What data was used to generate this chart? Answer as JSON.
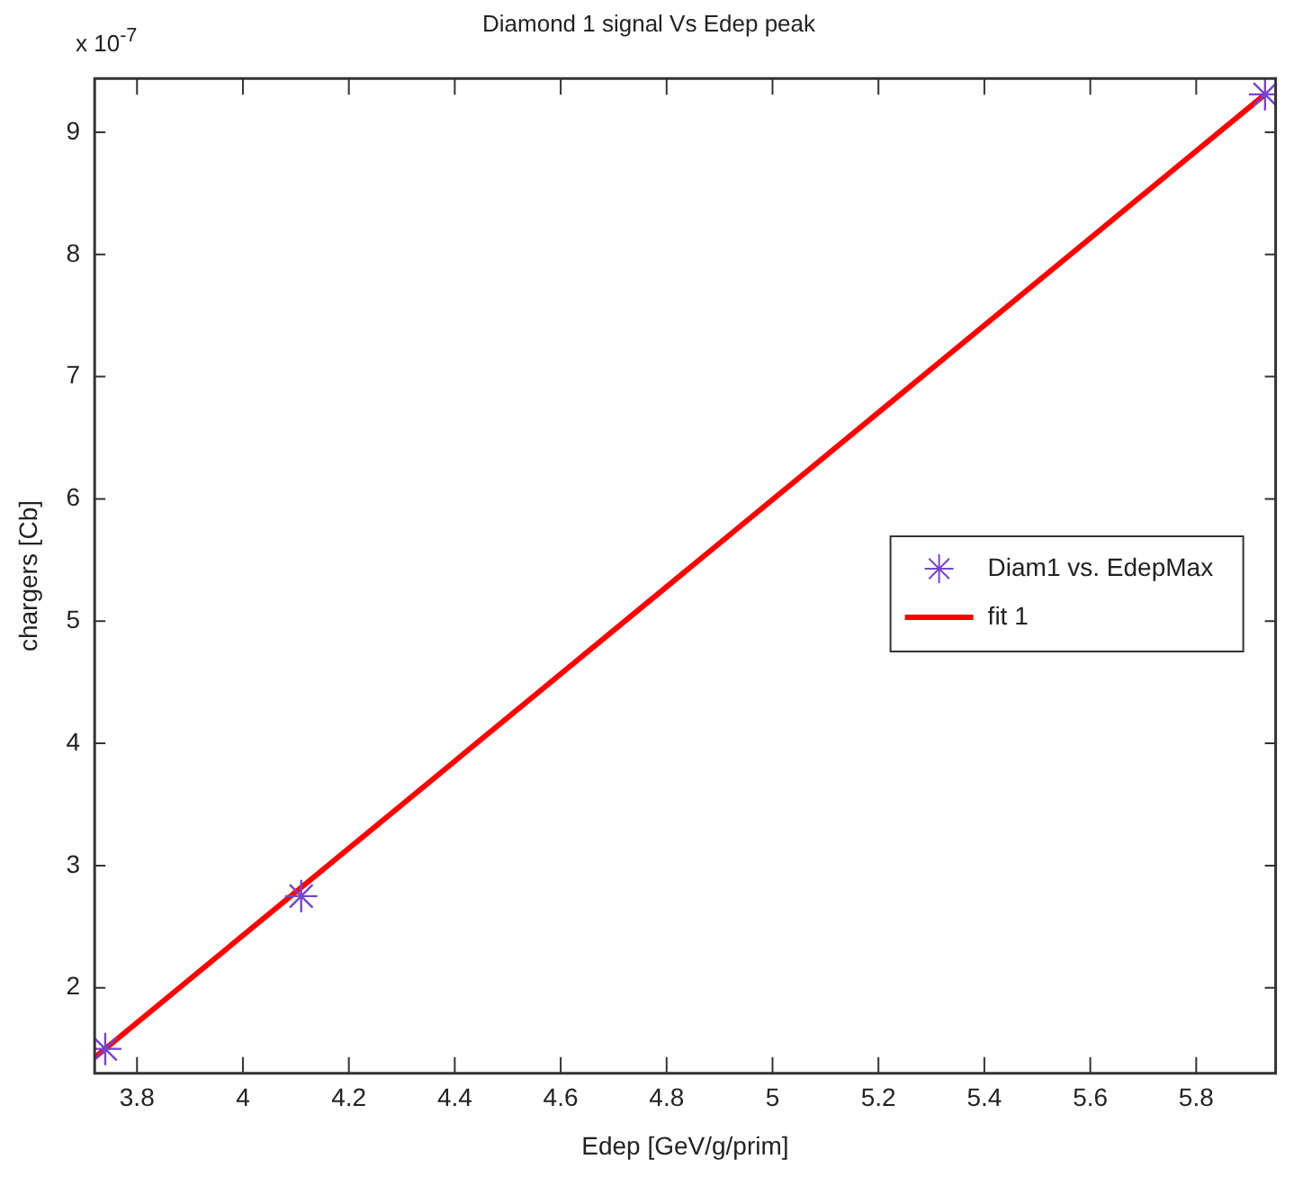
{
  "chart_data": {
    "type": "scatter",
    "title": "Diamond 1 signal Vs Edep peak",
    "xlabel": "Edep [GeV/g/prim]",
    "ylabel": "chargers [Cb]",
    "annotations": [
      "x 10$^{-7}$"
    ],
    "xlim": [
      3.72,
      5.95
    ],
    "xticks": [
      3.8,
      4,
      4.2,
      4.4,
      4.6,
      4.8,
      5,
      5.2,
      5.4,
      5.6,
      5.8
    ],
    "ylim": [
      1.3,
      9.44
    ],
    "yticks": [
      2,
      3,
      4,
      5,
      6,
      7,
      8,
      9
    ],
    "grid": false,
    "legend": "right",
    "marker": "cross",
    "series": [
      {
        "name": "Diam1 vs. EdepMax",
        "color": "#7744cc",
        "x": [
          3.74,
          4.11,
          5.93
        ],
        "values": [
          1.5,
          2.75,
          9.31
        ]
      },
      {
        "name": "fit 1",
        "type": "line",
        "color": "#ff0000",
        "marker": "none",
        "line_style": "solid",
        "x": [
          3.72,
          5.93
        ],
        "values": [
          1.43,
          9.31
        ]
      }
    ]
  }
}
